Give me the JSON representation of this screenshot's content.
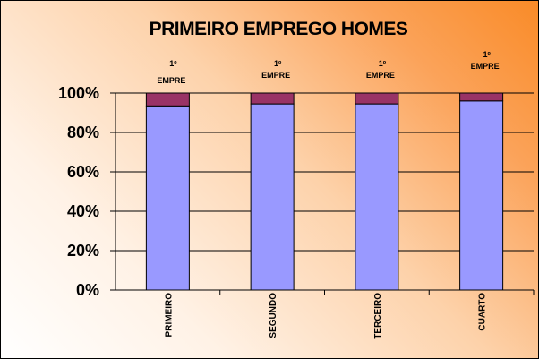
{
  "chart_data": {
    "type": "bar",
    "stacked": "percent",
    "title": "PRIMEIRO EMPREGO HOMES",
    "categories": [
      "PRIMEIRO",
      "SEGUNDO",
      "TERCEIRO",
      "CUARTO"
    ],
    "series": [
      {
        "values": [
          93.5,
          94.5,
          94.5,
          96
        ],
        "color": "#9999ff"
      },
      {
        "values": [
          6.5,
          5.5,
          5.5,
          4
        ],
        "color": "#993366"
      }
    ],
    "data_labels": [
      {
        "line1": "1º",
        "line2": "EMPRE"
      },
      {
        "line1": "1º",
        "line2": "EMPRE"
      },
      {
        "line1": "1º",
        "line2": "EMPRE"
      },
      {
        "line1": "1º",
        "line2": "EMPRE"
      }
    ],
    "y_ticks": [
      "0%",
      "20%",
      "40%",
      "60%",
      "80%",
      "100%"
    ],
    "ylim": [
      0,
      100
    ],
    "grid": true,
    "legend": "none"
  }
}
